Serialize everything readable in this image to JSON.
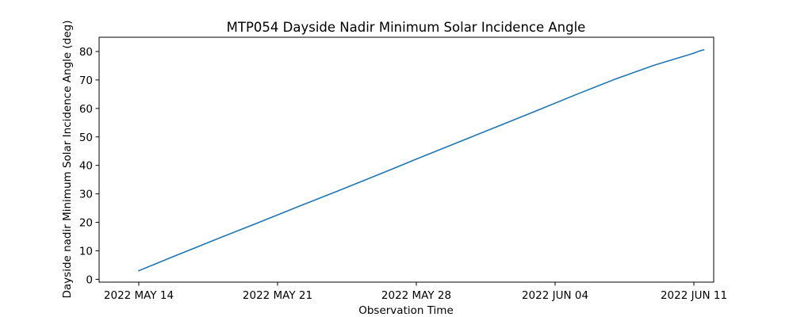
{
  "chart_data": {
    "type": "line",
    "title": "MTP054 Dayside Nadir Minimum Solar Incidence Angle",
    "xlabel": "Observation Time",
    "ylabel": "Dayside nadir Minimum Solar Incidence Angle (deg)",
    "x_type": "date",
    "xlim": [
      "2022-05-12",
      "2022-06-12"
    ],
    "ylim": [
      -1,
      85
    ],
    "x_ticks": [
      {
        "date": "2022-05-14",
        "label": "2022 MAY 14"
      },
      {
        "date": "2022-05-21",
        "label": "2022 MAY 21"
      },
      {
        "date": "2022-05-28",
        "label": "2022 MAY 28"
      },
      {
        "date": "2022-06-04",
        "label": "2022 JUN 04"
      },
      {
        "date": "2022-06-11",
        "label": "2022 JUN 11"
      }
    ],
    "y_ticks": [
      0,
      10,
      20,
      30,
      40,
      50,
      60,
      70,
      80
    ],
    "grid": false,
    "legend": "none",
    "series": [
      {
        "color": "#1f77b4",
        "x": [
          "2022-05-14",
          "2022-05-16",
          "2022-05-18",
          "2022-05-20",
          "2022-05-22",
          "2022-05-24",
          "2022-05-26",
          "2022-05-28",
          "2022-05-30",
          "2022-06-01",
          "2022-06-03",
          "2022-06-05",
          "2022-06-07",
          "2022-06-09",
          "2022-06-11"
        ],
        "y": [
          3.0,
          8.7,
          14.3,
          19.8,
          25.4,
          30.9,
          36.5,
          42.2,
          47.8,
          53.4,
          59.0,
          64.7,
          70.2,
          75.2,
          79.4
        ]
      },
      {
        "color": "#1f77b4",
        "x": [
          "2022-06-11",
          "2022-06-11T06:00",
          "2022-06-11T12:00"
        ],
        "y": [
          79.4,
          80.1,
          80.6
        ]
      }
    ]
  }
}
